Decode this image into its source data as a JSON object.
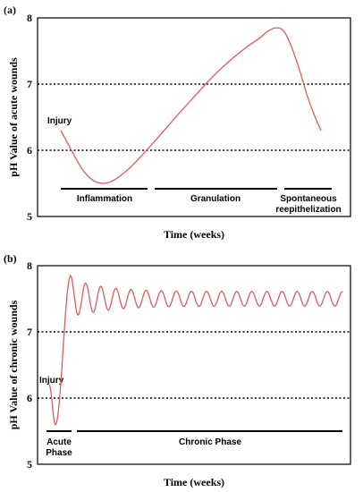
{
  "chart_data": [
    {
      "panel": "(a)",
      "type": "line",
      "xlabel": "Time (weeks)",
      "ylabel": "pH Value of acute wounds",
      "ylim": [
        5,
        8
      ],
      "yticks": [
        "5",
        "6",
        "7",
        "8"
      ],
      "grid": "dotted lines at 6 and 7",
      "annotation": "Injury",
      "phases": [
        {
          "label_lines": [
            "Inflammation"
          ]
        },
        {
          "label_lines": [
            "Granulation"
          ]
        },
        {
          "label_lines": [
            "Spontaneous",
            "reepithelization"
          ]
        }
      ],
      "series": [
        {
          "color": "#e8585a",
          "points": [
            [
              0.0,
              6.3
            ],
            [
              0.04,
              6.0
            ],
            [
              0.08,
              5.72
            ],
            [
              0.12,
              5.55
            ],
            [
              0.16,
              5.5
            ],
            [
              0.2,
              5.55
            ],
            [
              0.25,
              5.7
            ],
            [
              0.3,
              5.9
            ],
            [
              0.35,
              6.12
            ],
            [
              0.4,
              6.35
            ],
            [
              0.45,
              6.58
            ],
            [
              0.5,
              6.8
            ],
            [
              0.55,
              7.02
            ],
            [
              0.6,
              7.22
            ],
            [
              0.65,
              7.4
            ],
            [
              0.7,
              7.56
            ],
            [
              0.75,
              7.7
            ],
            [
              0.78,
              7.8
            ],
            [
              0.81,
              7.85
            ],
            [
              0.84,
              7.8
            ],
            [
              0.87,
              7.55
            ],
            [
              0.9,
              7.2
            ],
            [
              0.93,
              6.8
            ],
            [
              0.96,
              6.48
            ],
            [
              0.98,
              6.3
            ]
          ]
        }
      ]
    },
    {
      "panel": "(b)",
      "type": "line",
      "xlabel": "Time (weeks)",
      "ylabel": "pH Value of chronic wounds",
      "ylim": [
        5,
        8
      ],
      "yticks": [
        "5",
        "6",
        "7",
        "8"
      ],
      "grid": "dotted lines at 6 and 7",
      "annotation": "Injury",
      "phases": [
        {
          "label_lines": [
            "Acute",
            "Phase"
          ]
        },
        {
          "label_lines": [
            "Chronic Phase"
          ]
        }
      ],
      "series": [
        {
          "color": "#e8585a",
          "oscillation": {
            "start_value": 6.2,
            "dip_value": 5.6,
            "peak_value": 7.85,
            "mean_value": 7.5,
            "first_amplitude": 0.3,
            "settled_amplitude": 0.11,
            "cycles": 18
          }
        }
      ]
    }
  ]
}
